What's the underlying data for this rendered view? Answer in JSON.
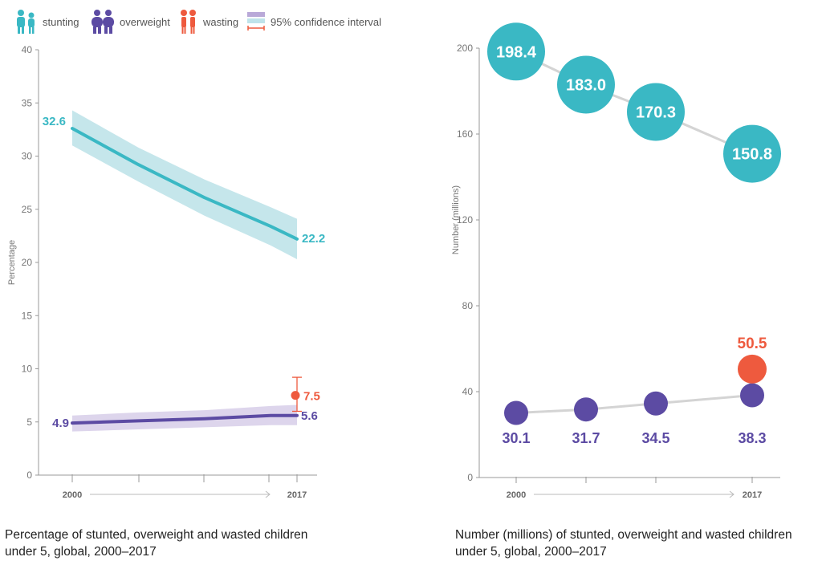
{
  "legend": [
    {
      "key": "stunting",
      "label": "stunting",
      "icon": "child-pair-icon",
      "color": "#3ab8c4"
    },
    {
      "key": "overweight",
      "label": "overweight",
      "icon": "child-pair-icon",
      "color": "#5c4ba3"
    },
    {
      "key": "wasting",
      "label": "wasting",
      "icon": "child-pair-icon",
      "color": "#ee5a3e"
    },
    {
      "key": "ci",
      "label": "95% confidence interval",
      "icon": "confidence-interval-icon",
      "color": "#b9a9d8"
    }
  ],
  "colors": {
    "stunting": "#3ab8c4",
    "stunting_band": "#c5e6eb",
    "overweight": "#5c4ba3",
    "overweight_band": "#ddd5ec",
    "wasting": "#ee5a3e",
    "axis": "#999999",
    "connector": "#d4d4d4"
  },
  "captions": {
    "left": "Percentage of stunted, overweight and wasted children under 5, global, 2000–2017",
    "right": "Number (millions) of stunted, overweight and wasted children under 5, global, 2000–2017"
  },
  "chart_data": [
    {
      "type": "line",
      "ylabel": "Percentage",
      "xlabel": "",
      "ylim": [
        0,
        40
      ],
      "yticks": [
        0,
        5,
        10,
        15,
        20,
        25,
        30,
        35,
        40
      ],
      "x_ticklabels": [
        "2000",
        "2017"
      ],
      "series": [
        {
          "name": "stunting",
          "x": [
            2000,
            2005,
            2010,
            2015,
            2017
          ],
          "y": [
            32.6,
            29.2,
            26.1,
            23.4,
            22.2
          ],
          "ci_low": [
            31.0,
            27.6,
            24.4,
            21.6,
            20.3
          ],
          "ci_high": [
            34.3,
            30.8,
            27.8,
            25.2,
            24.1
          ],
          "labels": {
            "start": "32.6",
            "end": "22.2"
          }
        },
        {
          "name": "overweight",
          "x": [
            2000,
            2005,
            2010,
            2015,
            2017
          ],
          "y": [
            4.9,
            5.1,
            5.3,
            5.6,
            5.6
          ],
          "ci_low": [
            4.1,
            4.3,
            4.5,
            4.7,
            4.7
          ],
          "ci_high": [
            5.6,
            5.9,
            6.1,
            6.5,
            6.6
          ],
          "labels": {
            "start": "4.9",
            "end": "5.6"
          }
        },
        {
          "name": "wasting",
          "x": [
            2017
          ],
          "y": [
            7.5
          ],
          "ci_low": [
            6.0
          ],
          "ci_high": [
            9.2
          ],
          "labels": {
            "end": "7.5"
          }
        }
      ]
    },
    {
      "type": "scatter",
      "ylabel": "Number (millions)",
      "xlabel": "",
      "ylim": [
        0,
        200
      ],
      "yticks": [
        0,
        40,
        80,
        120,
        160,
        200
      ],
      "x_ticklabels": [
        "2000",
        "2017"
      ],
      "series": [
        {
          "name": "stunting",
          "x": [
            2000,
            2005,
            2010,
            2017
          ],
          "y": [
            198.4,
            183.0,
            170.3,
            150.8
          ],
          "labels": [
            "198.4",
            "183.0",
            "170.3",
            "150.8"
          ]
        },
        {
          "name": "overweight",
          "x": [
            2000,
            2005,
            2010,
            2017
          ],
          "y": [
            30.1,
            31.7,
            34.5,
            38.3
          ],
          "labels": [
            "30.1",
            "31.7",
            "34.5",
            "38.3"
          ]
        },
        {
          "name": "wasting",
          "x": [
            2017
          ],
          "y": [
            50.5
          ],
          "labels": [
            "50.5"
          ]
        }
      ]
    }
  ]
}
